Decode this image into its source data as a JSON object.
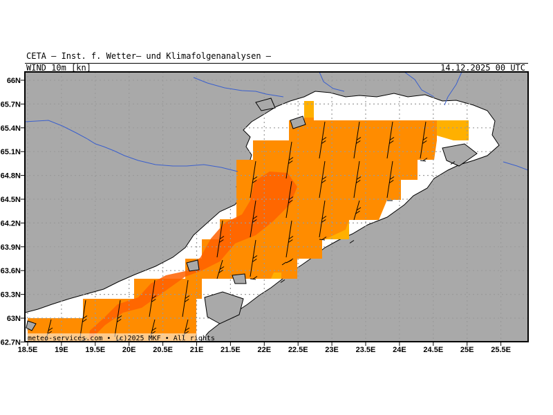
{
  "header": {
    "title": "CETA — Inst. f. Wetter— und Klimafolgenanalysen —",
    "parameter": "WIND_10m_[kn]",
    "datetime": "14.12.2025 00 UTC"
  },
  "footer": {
    "copyright": "meteo-services.com • (c)2025 MKF • All rights"
  },
  "axes": {
    "lat_labels": [
      "66N",
      "65.7N",
      "65.4N",
      "65.1N",
      "64.8N",
      "64.5N",
      "64.2N",
      "63.9N",
      "63.6N",
      "63.3N",
      "63N",
      "62.7N"
    ],
    "lon_labels": [
      "18.5E",
      "19E",
      "19.5E",
      "20E",
      "20.5E",
      "21E",
      "21.5E",
      "22E",
      "22.5E",
      "23E",
      "23.5E",
      "24E",
      "24.5E",
      "25E",
      "25.5E"
    ]
  },
  "colors": {
    "land": "#a9a9a9",
    "sea": "#ffffff",
    "wind_low": "#ffb000",
    "wind_mid": "#ff8c00",
    "wind_high": "#ff6000",
    "rivers": "#3a5fcd",
    "grid": "#9a9a9a"
  }
}
